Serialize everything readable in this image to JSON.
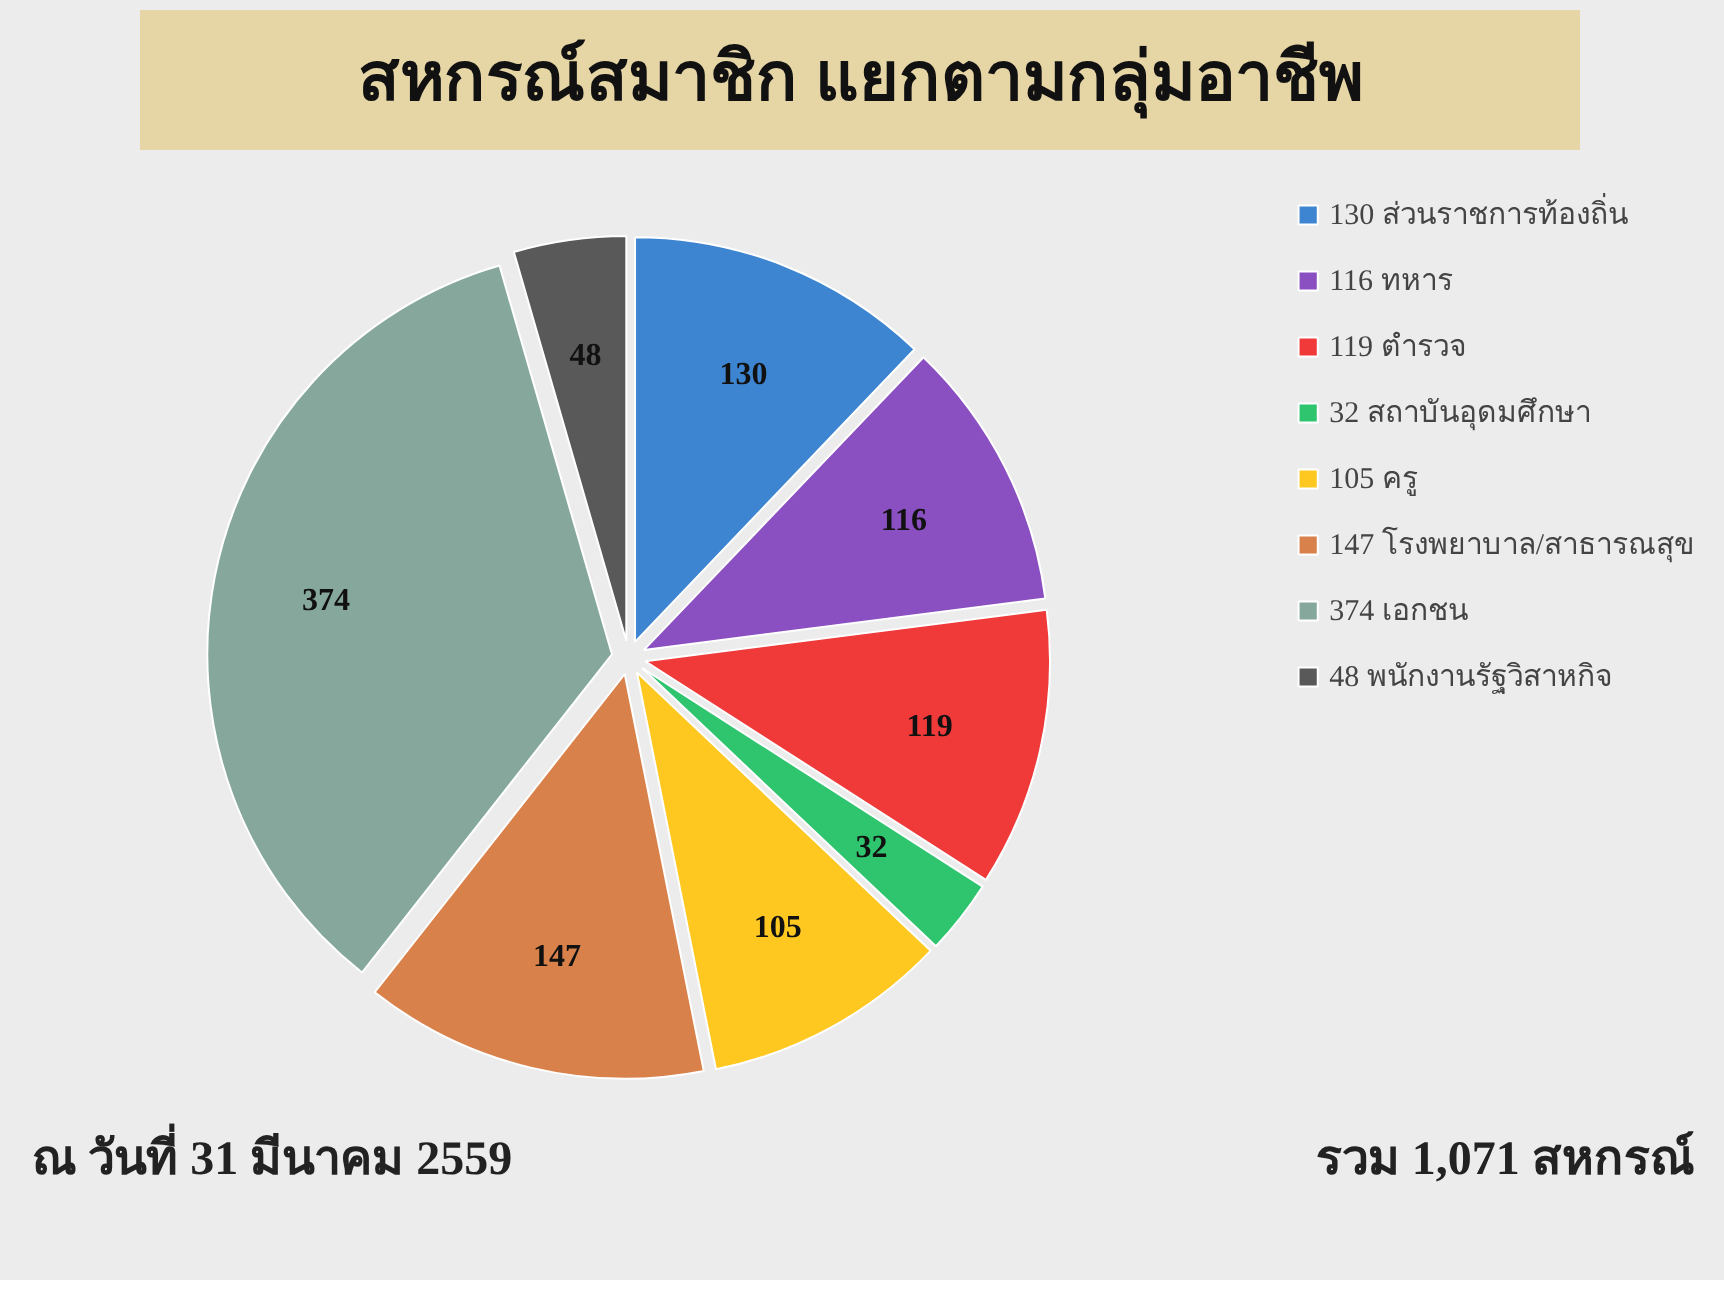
{
  "chart_data": {
    "type": "pie",
    "title": "สหกรณ์สมาชิก  แยกตามกลุ่มอาชีพ",
    "categories": [
      "130 ส่วนราชการท้องถิ่น",
      "116 ทหาร",
      "119 ตำรวจ",
      "32 สถาบันอุดมศึกษา",
      "105 ครู",
      "147 โรงพยาบาล/สาธารณสุข",
      "374 เอกชน",
      "48 พนักงานรัฐวิสาหกิจ"
    ],
    "values": [
      130,
      116,
      119,
      32,
      105,
      147,
      374,
      48
    ],
    "colors": [
      "#3d85d0",
      "#8a4fc0",
      "#f03a3a",
      "#2fc46e",
      "#ffc820",
      "#d9814a",
      "#86a89c",
      "#595959"
    ],
    "data_labels": true,
    "legend": "right",
    "annotations": [
      "ณ วันที่ 31 มีนาคม 2559",
      "รวม 1,071 สหกรณ์"
    ]
  }
}
